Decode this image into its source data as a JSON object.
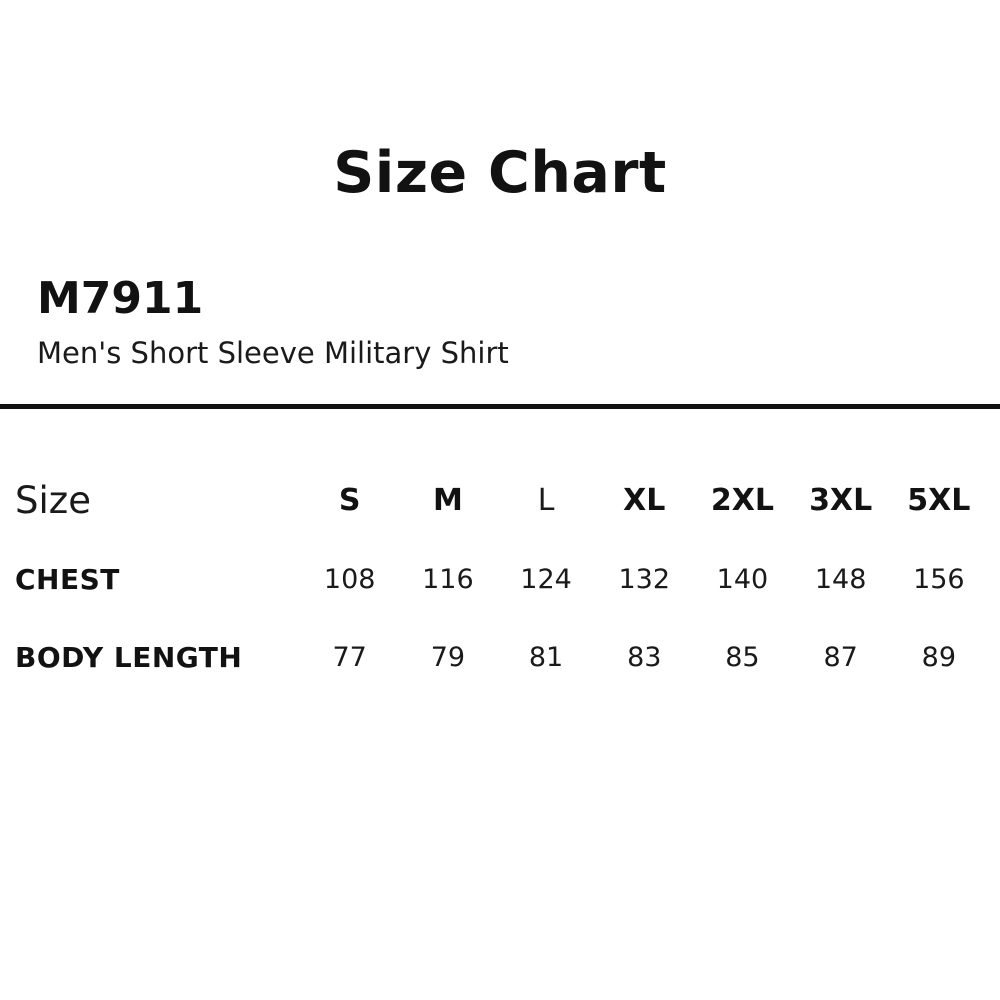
{
  "header": {
    "title": "Size Chart"
  },
  "product": {
    "code": "M7911",
    "name": "Men's Short Sleeve Military Shirt"
  },
  "chart_data": {
    "type": "table",
    "title": "Size Chart",
    "columns": [
      "Size",
      "S",
      "M",
      "L",
      "XL",
      "2XL",
      "3XL",
      "5XL"
    ],
    "rows": [
      [
        "CHEST",
        108,
        116,
        124,
        132,
        140,
        148,
        156
      ],
      [
        "BODY LENGTH",
        77,
        79,
        81,
        83,
        85,
        87,
        89
      ]
    ]
  },
  "colors": {
    "background": "#ffffff",
    "text": "#121212",
    "divider": "#111111"
  }
}
